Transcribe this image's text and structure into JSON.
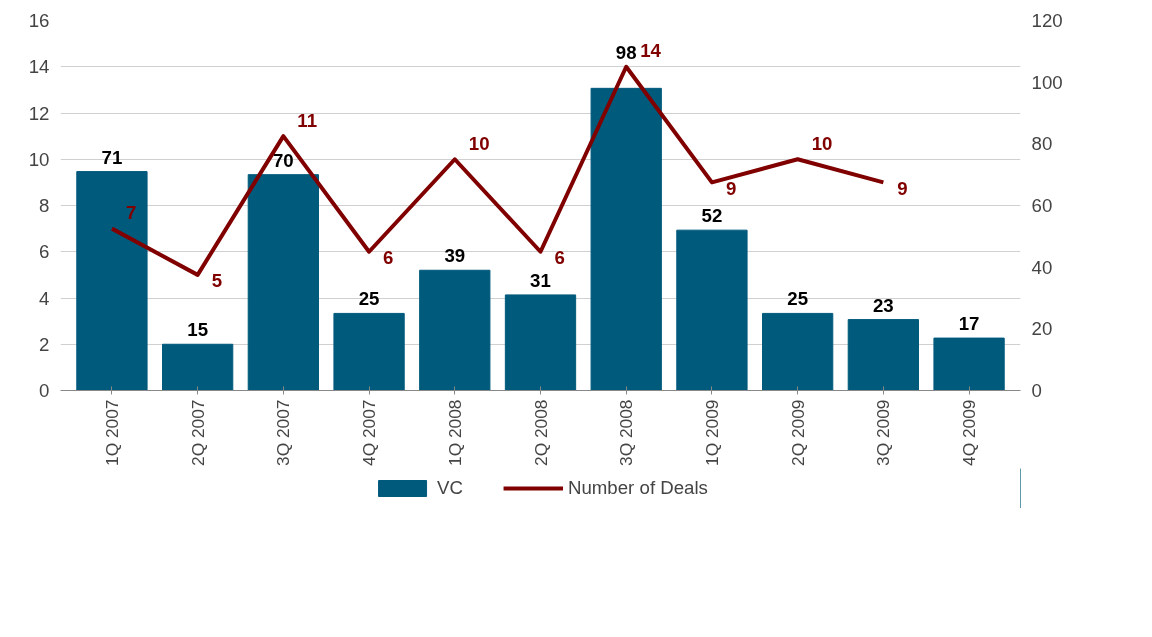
{
  "chart_data": {
    "type": "bar",
    "categories": [
      "1Q 2007",
      "2Q 2007",
      "3Q 2007",
      "4Q 2007",
      "1Q 2008",
      "2Q 2008",
      "3Q 2008",
      "1Q 2009",
      "2Q 2009",
      "3Q 2009",
      "4Q 2009"
    ],
    "series": [
      {
        "name": "VC",
        "axis": "y2",
        "color": "#005a7c",
        "values": [
          71,
          15,
          70,
          25,
          39,
          31,
          98,
          52,
          25,
          23,
          17
        ]
      },
      {
        "name": "Number of Deals",
        "type": "line",
        "axis": "y",
        "color": "#800000",
        "values": [
          7,
          5,
          11,
          6,
          10,
          6,
          14,
          9,
          10,
          9,
          null
        ]
      }
    ],
    "ylim": [
      0,
      16
    ],
    "yticks": [
      0,
      2,
      4,
      6,
      8,
      10,
      12,
      14,
      16
    ],
    "y2lim": [
      0,
      120
    ],
    "y2ticks": [
      0,
      20,
      40,
      60,
      80,
      100,
      120
    ],
    "grid": "y",
    "legend": "bottom",
    "data_labels": true,
    "marker": "none",
    "line_style": "solid"
  }
}
